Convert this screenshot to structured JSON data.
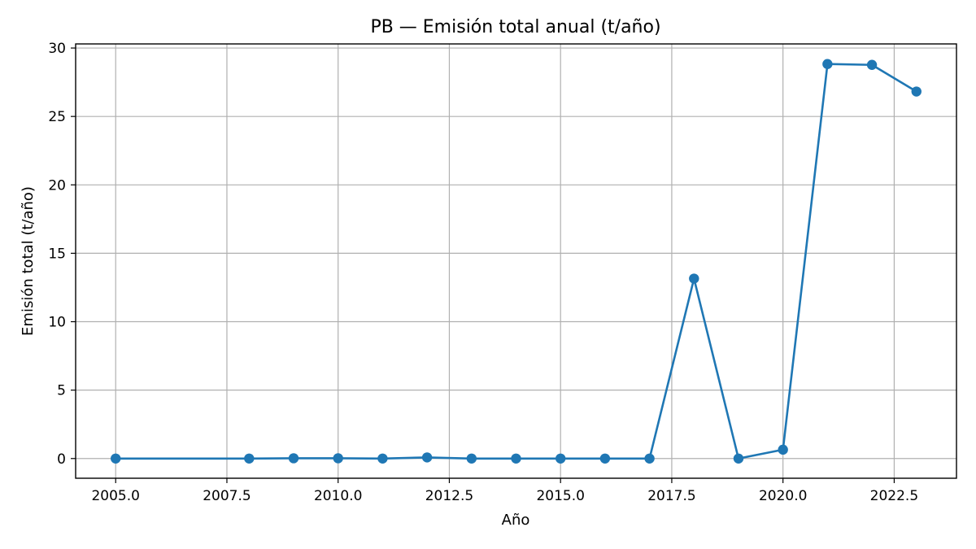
{
  "chart_data": {
    "type": "line",
    "title": "PB — Emisión total anual (t/año)",
    "xlabel": "Año",
    "ylabel": "Emisión total (t/año)",
    "xlim": [
      2004.1,
      2023.9
    ],
    "ylim": [
      -1.44,
      30.3
    ],
    "x_ticks": [
      2005.0,
      2007.5,
      2010.0,
      2012.5,
      2015.0,
      2017.5,
      2020.0,
      2022.5
    ],
    "x_tick_labels": [
      "2005.0",
      "2007.5",
      "2010.0",
      "2012.5",
      "2015.0",
      "2017.5",
      "2020.0",
      "2022.5"
    ],
    "y_ticks": [
      0,
      5,
      10,
      15,
      20,
      25,
      30
    ],
    "y_tick_labels": [
      "0",
      "5",
      "10",
      "15",
      "20",
      "25",
      "30"
    ],
    "grid": true,
    "color": "#1f77b4",
    "series": [
      {
        "x": [
          2005,
          2008,
          2009,
          2010,
          2011,
          2012,
          2013,
          2014,
          2015,
          2016,
          2017,
          2018,
          2019,
          2020,
          2021,
          2022,
          2023
        ],
        "values": [
          0.0,
          0.0,
          0.02,
          0.02,
          0.0,
          0.08,
          0.0,
          0.0,
          0.0,
          0.0,
          0.0,
          13.15,
          0.0,
          0.65,
          28.83,
          28.77,
          26.82
        ]
      }
    ]
  }
}
